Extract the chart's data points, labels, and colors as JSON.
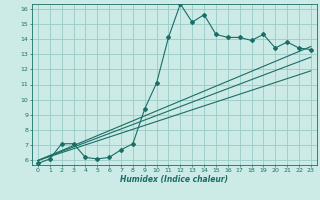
{
  "xlabel": "Humidex (Indice chaleur)",
  "bg_color": "#cceae6",
  "grid_color": "#99ccc8",
  "line_color": "#1a6e66",
  "xlim": [
    -0.5,
    23.5
  ],
  "ylim": [
    5.7,
    16.3
  ],
  "xticks": [
    0,
    1,
    2,
    3,
    4,
    5,
    6,
    7,
    8,
    9,
    10,
    11,
    12,
    13,
    14,
    15,
    16,
    17,
    18,
    19,
    20,
    21,
    22,
    23
  ],
  "yticks": [
    6,
    7,
    8,
    9,
    10,
    11,
    12,
    13,
    14,
    15,
    16
  ],
  "line1_x": [
    0,
    1,
    2,
    3,
    4,
    5,
    6,
    7,
    8,
    9,
    10,
    11,
    12,
    13,
    14,
    15,
    16,
    17,
    18,
    19,
    20,
    21,
    22,
    23
  ],
  "line1_y": [
    5.8,
    6.1,
    7.1,
    7.1,
    6.2,
    6.1,
    6.2,
    6.7,
    7.1,
    9.4,
    11.1,
    14.1,
    16.3,
    15.1,
    15.6,
    14.3,
    14.1,
    14.1,
    13.9,
    14.3,
    13.4,
    13.8,
    13.4,
    13.3
  ],
  "line2_x": [
    0,
    23
  ],
  "line2_y": [
    6.0,
    13.5
  ],
  "line3_x": [
    0,
    23
  ],
  "line3_y": [
    6.0,
    12.8
  ],
  "line4_x": [
    0,
    23
  ],
  "line4_y": [
    6.0,
    11.9
  ]
}
